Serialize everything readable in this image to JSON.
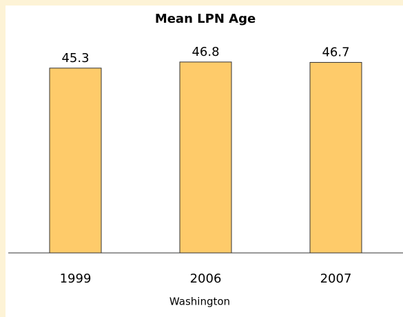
{
  "chart_data": {
    "type": "bar",
    "title": "Mean LPN Age",
    "x_label": "Washington",
    "categories": [
      "1999",
      "2006",
      "2007"
    ],
    "values": [
      45.3,
      46.8,
      46.7
    ],
    "color": "#fecb6a",
    "ylim": [
      0,
      50
    ]
  }
}
